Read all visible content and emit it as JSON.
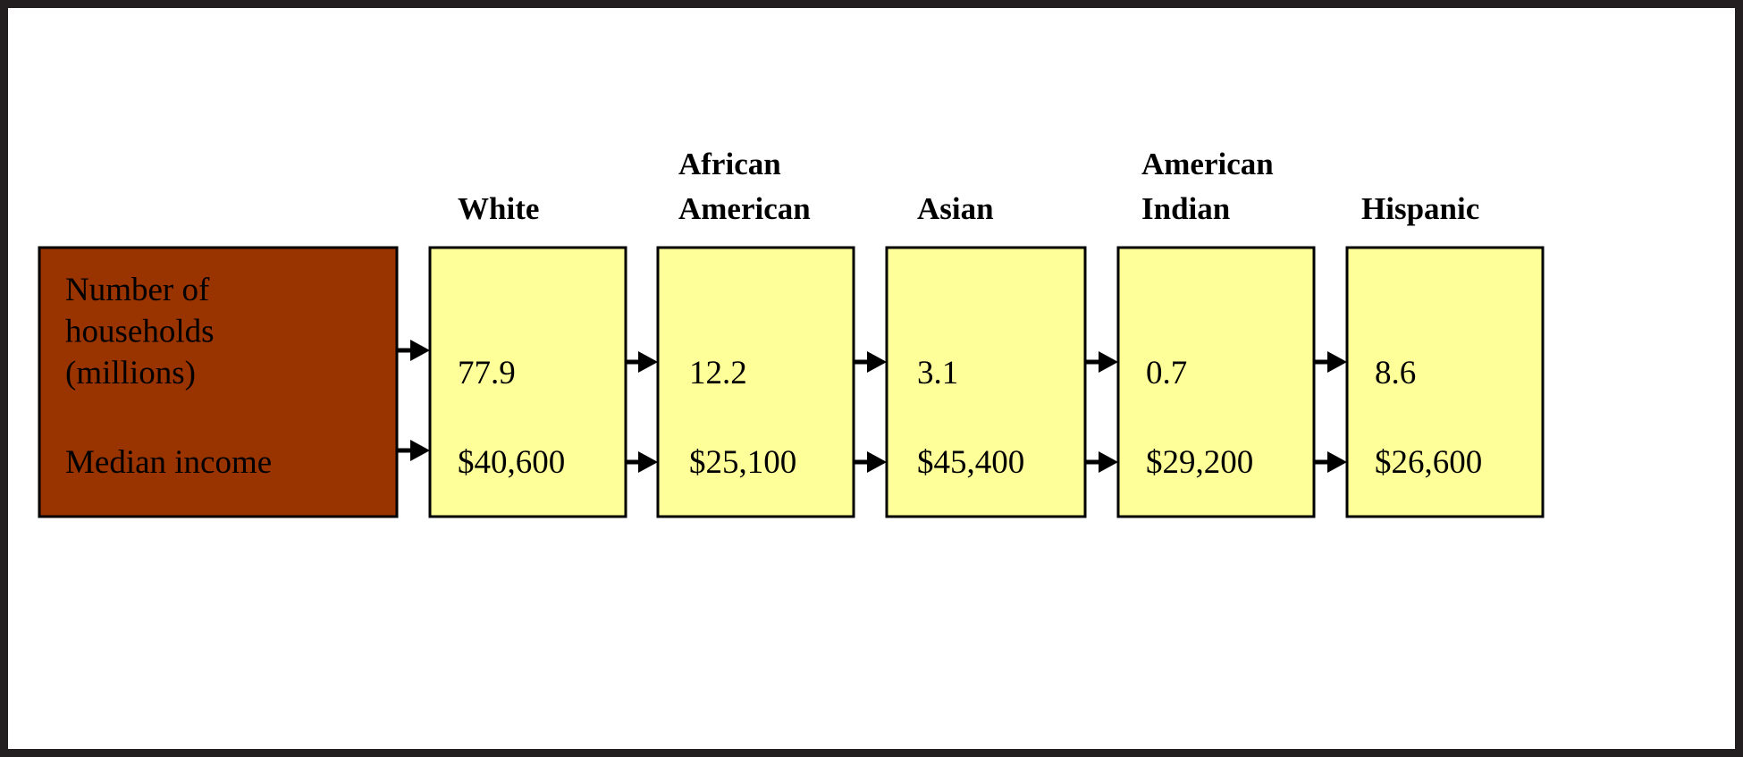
{
  "row_labels": {
    "households": [
      "Number of",
      "households",
      "(millions)"
    ],
    "income": [
      "Median income"
    ]
  },
  "columns": [
    {
      "header": [
        "White"
      ],
      "households": "77.9",
      "income": "$40,600"
    },
    {
      "header": [
        "African",
        "American"
      ],
      "households": "12.2",
      "income": "$25,100"
    },
    {
      "header": [
        "Asian"
      ],
      "households": "3.1",
      "income": "$45,400"
    },
    {
      "header": [
        "American",
        "Indian"
      ],
      "households": "0.7",
      "income": "$29,200"
    },
    {
      "header": [
        "Hispanic"
      ],
      "households": "8.6",
      "income": "$26,600"
    }
  ]
}
